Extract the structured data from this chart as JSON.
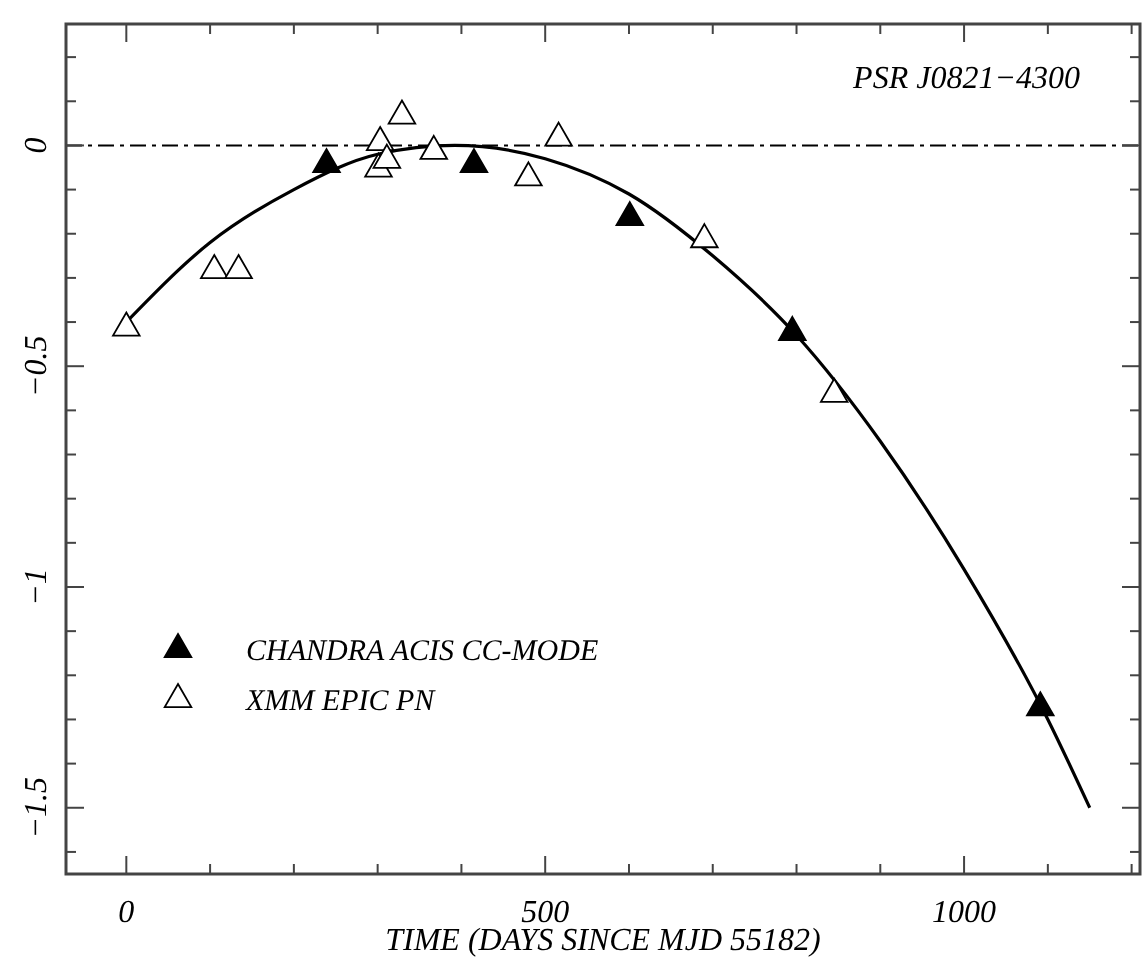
{
  "chart_data": {
    "type": "scatter",
    "xlabel": "TIME (DAYS SINCE MJD 55182)",
    "annotations": [
      "PSR J0821−4300"
    ],
    "xlim": [
      -72,
      1210
    ],
    "ylim": [
      -1.65,
      0.275
    ],
    "xticks": [
      0,
      {
        "value": 100,
        "label": null
      },
      {
        "value": 200,
        "label": null
      },
      {
        "value": 300,
        "label": null
      },
      {
        "value": 400,
        "label": null
      },
      500,
      {
        "value": 600,
        "label": null
      },
      {
        "value": 700,
        "label": null
      },
      {
        "value": 800,
        "label": null
      },
      {
        "value": 900,
        "label": null
      },
      1000,
      {
        "value": 1100,
        "label": null
      },
      {
        "value": 1200,
        "label": null
      }
    ],
    "yticks": [
      {
        "value": 0.2,
        "label": null
      },
      {
        "value": 0.1,
        "label": null
      },
      0,
      {
        "value": -0.1,
        "label": null
      },
      {
        "value": -0.2,
        "label": null
      },
      {
        "value": -0.3,
        "label": null
      },
      {
        "value": -0.4,
        "label": null
      },
      {
        "value": -0.5,
        "label": "−0.5"
      },
      {
        "value": -0.6,
        "label": null
      },
      {
        "value": -0.7,
        "label": null
      },
      {
        "value": -0.8,
        "label": null
      },
      {
        "value": -0.9,
        "label": null
      },
      {
        "value": -1,
        "label": "−1"
      },
      {
        "value": -1.1,
        "label": null
      },
      {
        "value": -1.2,
        "label": null
      },
      {
        "value": -1.3,
        "label": null
      },
      {
        "value": -1.4,
        "label": null
      },
      {
        "value": -1.5,
        "label": "−1.5"
      },
      {
        "value": -1.6,
        "label": null
      }
    ],
    "marker": "triangle",
    "legend": "bottom left",
    "ref_lines": [
      {
        "axis": "y",
        "value": 0,
        "line_style": "dashed",
        "color": "#000000"
      }
    ],
    "series": [
      {
        "type": "line",
        "color": "#000000",
        "line_style": "solid",
        "marker": "none",
        "x": [
          0,
          100,
          200,
          300,
          392,
          500,
          600,
          700,
          800,
          900,
          1000,
          1100,
          1150
        ],
        "values": [
          -0.4,
          -0.22,
          -0.1,
          -0.02,
          0,
          -0.03,
          -0.11,
          -0.25,
          -0.43,
          -0.67,
          -0.96,
          -1.3,
          -1.5
        ]
      },
      {
        "name": "CHANDRA ACIS CC-MODE",
        "color": "#000000",
        "x": [
          239,
          415,
          601,
          795,
          1091
        ],
        "values": [
          -0.04,
          -0.04,
          -0.16,
          -0.42,
          -1.27
        ]
      },
      {
        "name": "XMM EPIC PN",
        "color": "#ffffff",
        "x": [
          0,
          105,
          134,
          301,
          303,
          311,
          329,
          367,
          480,
          516,
          690,
          845
        ],
        "values": [
          -0.41,
          -0.28,
          -0.28,
          -0.05,
          0.01,
          -0.03,
          0.07,
          -0.01,
          -0.07,
          0.02,
          -0.21,
          -0.56
        ]
      }
    ]
  }
}
